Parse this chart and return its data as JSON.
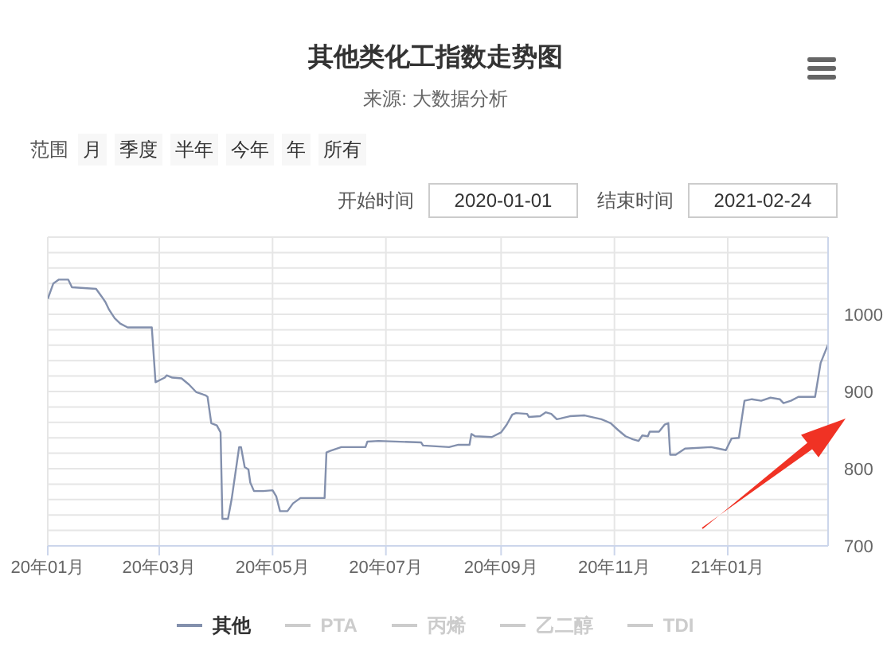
{
  "chart_data": {
    "type": "line",
    "title": "其他类化工指数走势图",
    "subtitle": "来源: 大数据分析",
    "annotations": [
      "范围",
      "月",
      "季度",
      "半年",
      "今年",
      "年",
      "所有",
      "开始时间",
      "2020-01-01",
      "结束时间",
      "2021-02-24"
    ],
    "x": [
      "2020-01-01",
      "2020-01-04",
      "2020-01-07",
      "2020-01-12",
      "2020-01-14",
      "2020-01-27",
      "2020-01-30",
      "2020-02-01",
      "2020-02-03",
      "2020-02-06",
      "2020-02-09",
      "2020-02-13",
      "2020-02-26",
      "2020-02-28",
      "2020-03-04",
      "2020-03-05",
      "2020-03-08",
      "2020-03-13",
      "2020-03-17",
      "2020-03-21",
      "2020-03-26",
      "2020-03-27",
      "2020-03-29",
      "2020-04-01",
      "2020-04-03",
      "2020-04-04",
      "2020-04-07",
      "2020-04-09",
      "2020-04-13",
      "2020-04-14",
      "2020-04-16",
      "2020-04-18",
      "2020-04-19",
      "2020-04-21",
      "2020-04-26",
      "2020-05-01",
      "2020-05-03",
      "2020-05-05",
      "2020-05-09",
      "2020-05-12",
      "2020-05-16",
      "2020-05-29",
      "2020-05-30",
      "2020-06-01",
      "2020-06-07",
      "2020-06-20",
      "2020-06-21",
      "2020-06-27",
      "2020-07-20",
      "2020-07-21",
      "2020-08-04",
      "2020-08-09",
      "2020-08-15",
      "2020-08-16",
      "2020-08-18",
      "2020-08-27",
      "2020-09-01",
      "2020-09-04",
      "2020-09-07",
      "2020-09-09",
      "2020-09-15",
      "2020-09-16",
      "2020-09-22",
      "2020-09-25",
      "2020-09-28",
      "2020-10-01",
      "2020-10-03",
      "2020-10-08",
      "2020-10-16",
      "2020-10-25",
      "2020-10-30",
      "2020-11-03",
      "2020-11-07",
      "2020-11-11",
      "2020-11-14",
      "2020-11-16",
      "2020-11-19",
      "2020-11-20",
      "2020-11-25",
      "2020-11-28",
      "2020-11-30",
      "2020-12-01",
      "2020-12-04",
      "2020-12-09",
      "2020-12-23",
      "2020-12-27",
      "2020-12-31",
      "2021-01-03",
      "2021-01-07",
      "2021-01-10",
      "2021-01-14",
      "2021-01-19",
      "2021-01-24",
      "2021-01-29",
      "2021-01-31",
      "2021-02-04",
      "2021-02-08",
      "2021-02-17",
      "2021-02-20",
      "2021-02-24"
    ],
    "series": [
      {
        "name": "其他",
        "color": "#8390ad",
        "values": [
          1020,
          1040,
          1045,
          1045,
          1035,
          1033,
          1023,
          1016,
          1006,
          995,
          988,
          983,
          983,
          912,
          918,
          921,
          918,
          917,
          909,
          899,
          895,
          893,
          859,
          856,
          847,
          735,
          735,
          761,
          828,
          828,
          802,
          799,
          782,
          771,
          771,
          772,
          764,
          745,
          745,
          755,
          762,
          762,
          821,
          823,
          828,
          828,
          835,
          836,
          834,
          830,
          828,
          831,
          831,
          845,
          842,
          841,
          847,
          857,
          870,
          872,
          871,
          867,
          868,
          873,
          871,
          864,
          865,
          868,
          869,
          864,
          859,
          850,
          842,
          838,
          836,
          843,
          842,
          848,
          848,
          857,
          859,
          818,
          818,
          826,
          828,
          826,
          824,
          839,
          840,
          888,
          890,
          888,
          892,
          890,
          885,
          888,
          893,
          893,
          937,
          961
        ]
      },
      {
        "name": "PTA",
        "color": "#cccccc",
        "values": [
          null,
          null,
          null,
          null,
          null,
          null,
          null,
          null,
          null,
          null,
          null,
          null,
          null,
          null,
          null,
          null,
          null,
          null,
          null,
          null,
          null,
          null,
          null,
          null,
          null,
          null,
          null,
          null,
          null,
          null,
          null,
          null,
          null,
          null,
          null,
          null,
          null,
          null,
          null,
          null,
          null,
          null,
          null,
          null,
          null,
          null,
          null,
          null,
          null,
          null,
          null,
          null,
          null,
          null,
          null,
          null,
          null,
          null,
          null,
          null,
          null,
          null,
          null,
          null,
          null,
          null,
          null,
          null,
          null,
          null,
          null,
          null,
          null,
          null,
          null,
          null,
          null,
          null,
          null,
          null,
          null,
          null,
          null,
          null,
          null,
          null,
          null,
          null,
          null,
          null,
          null,
          null,
          null,
          null,
          null,
          null,
          null,
          null,
          null,
          null
        ]
      },
      {
        "name": "丙烯",
        "color": "#cccccc",
        "values": [
          null,
          null,
          null,
          null,
          null,
          null,
          null,
          null,
          null,
          null,
          null,
          null,
          null,
          null,
          null,
          null,
          null,
          null,
          null,
          null,
          null,
          null,
          null,
          null,
          null,
          null,
          null,
          null,
          null,
          null,
          null,
          null,
          null,
          null,
          null,
          null,
          null,
          null,
          null,
          null,
          null,
          null,
          null,
          null,
          null,
          null,
          null,
          null,
          null,
          null,
          null,
          null,
          null,
          null,
          null,
          null,
          null,
          null,
          null,
          null,
          null,
          null,
          null,
          null,
          null,
          null,
          null,
          null,
          null,
          null,
          null,
          null,
          null,
          null,
          null,
          null,
          null,
          null,
          null,
          null,
          null,
          null,
          null,
          null,
          null,
          null,
          null,
          null,
          null,
          null,
          null,
          null,
          null,
          null,
          null,
          null,
          null,
          null,
          null,
          null
        ]
      },
      {
        "name": "乙二醇",
        "color": "#cccccc",
        "values": [
          null,
          null,
          null,
          null,
          null,
          null,
          null,
          null,
          null,
          null,
          null,
          null,
          null,
          null,
          null,
          null,
          null,
          null,
          null,
          null,
          null,
          null,
          null,
          null,
          null,
          null,
          null,
          null,
          null,
          null,
          null,
          null,
          null,
          null,
          null,
          null,
          null,
          null,
          null,
          null,
          null,
          null,
          null,
          null,
          null,
          null,
          null,
          null,
          null,
          null,
          null,
          null,
          null,
          null,
          null,
          null,
          null,
          null,
          null,
          null,
          null,
          null,
          null,
          null,
          null,
          null,
          null,
          null,
          null,
          null,
          null,
          null,
          null,
          null,
          null,
          null,
          null,
          null,
          null,
          null,
          null,
          null,
          null,
          null,
          null,
          null,
          null,
          null,
          null,
          null,
          null,
          null,
          null,
          null,
          null,
          null,
          null,
          null,
          null,
          null
        ]
      },
      {
        "name": "TDI",
        "color": "#cccccc",
        "values": [
          null,
          null,
          null,
          null,
          null,
          null,
          null,
          null,
          null,
          null,
          null,
          null,
          null,
          null,
          null,
          null,
          null,
          null,
          null,
          null,
          null,
          null,
          null,
          null,
          null,
          null,
          null,
          null,
          null,
          null,
          null,
          null,
          null,
          null,
          null,
          null,
          null,
          null,
          null,
          null,
          null,
          null,
          null,
          null,
          null,
          null,
          null,
          null,
          null,
          null,
          null,
          null,
          null,
          null,
          null,
          null,
          null,
          null,
          null,
          null,
          null,
          null,
          null,
          null,
          null,
          null,
          null,
          null,
          null,
          null,
          null,
          null,
          null,
          null,
          null,
          null,
          null,
          null,
          null,
          null,
          null,
          null,
          null,
          null,
          null,
          null,
          null,
          null,
          null,
          null,
          null,
          null,
          null,
          null,
          null,
          null,
          null,
          null,
          null,
          null
        ]
      }
    ],
    "xlim": [
      "2020-01-01",
      "2021-02-24"
    ],
    "xticks": [
      {
        "value": "2020-01-01",
        "label": "20年01月"
      },
      {
        "value": "2020-03-01",
        "label": "20年03月"
      },
      {
        "value": "2020-05-01",
        "label": "20年05月"
      },
      {
        "value": "2020-07-01",
        "label": "20年07月"
      },
      {
        "value": "2020-09-01",
        "label": "20年09月"
      },
      {
        "value": "2020-11-01",
        "label": "20年11月"
      },
      {
        "value": "2021-01-01",
        "label": "21年01月"
      }
    ],
    "ylim": [
      700,
      1100
    ],
    "yticks": [
      700,
      {
        "value": 720,
        "label": null
      },
      {
        "value": 740,
        "label": null
      },
      {
        "value": 760,
        "label": null
      },
      {
        "value": 780,
        "label": null
      },
      800,
      {
        "value": 820,
        "label": null
      },
      {
        "value": 840,
        "label": null
      },
      {
        "value": 860,
        "label": null
      },
      {
        "value": 880,
        "label": null
      },
      900,
      {
        "value": 920,
        "label": null
      },
      {
        "value": 940,
        "label": null
      },
      {
        "value": 960,
        "label": null
      },
      {
        "value": 980,
        "label": null
      },
      1000,
      {
        "value": 1020,
        "label": null
      },
      {
        "value": 1040,
        "label": null
      },
      {
        "value": 1060,
        "label": null
      },
      {
        "value": 1080,
        "label": null
      },
      {
        "value": 1100,
        "label": null
      }
    ],
    "grid": true,
    "legend": "bottom"
  }
}
